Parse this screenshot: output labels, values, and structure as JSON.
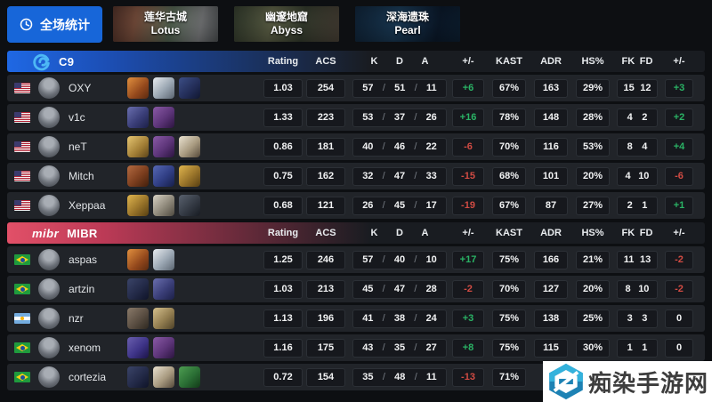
{
  "toolbar": {
    "stats_button_label": "全场统计",
    "maps": [
      {
        "name_cn": "莲华古城",
        "name_en": "Lotus"
      },
      {
        "name_cn": "幽邃地窟",
        "name_en": "Abyss"
      },
      {
        "name_cn": "深海遗珠",
        "name_en": "Pearl"
      }
    ]
  },
  "columns": {
    "rating": "Rating",
    "acs": "ACS",
    "k": "K",
    "d": "D",
    "a": "A",
    "diff": "+/-",
    "kast": "KAST",
    "adr": "ADR",
    "hs": "HS%",
    "fk": "FK",
    "fd": "FD",
    "diff2": "+/-"
  },
  "colors": {
    "accent_blue": "#1766d9",
    "c9_bar": "#1f68e4",
    "mibr_bar": "#e25068",
    "positive": "#2ab365",
    "negative": "#d14b43"
  },
  "icons": {
    "clock-icon": "clock dial",
    "c9-logo-icon": "Cloud9 blue swirl",
    "mibr-logo": "mibr italic wordmark",
    "flag-us-icon": "USA flag",
    "flag-br-icon": "Brazil flag",
    "flag-ar-icon": "Argentina flag",
    "agent-icon": "Valorant agent portrait",
    "site-logo-icon": "blue hexagon knot"
  },
  "teams": [
    {
      "name": "C9",
      "header_bg": "linear-gradient(90deg,#1f68e4 0%,#1c4fb6 14%,rgba(24,28,34,0) 52%),#191c21",
      "players": [
        {
          "name": "OXY",
          "flag": "us",
          "agents": [
            "linear-gradient(135deg,#e2903e,#93481c 60%,#5a2a10)",
            "linear-gradient(135deg,#e8ecf0,#9aa6b2 55%,#5a6570)",
            "linear-gradient(135deg,#3c4e86,#222c56 60%,#101730)"
          ],
          "rating": "1.03",
          "acs": "254",
          "k": "57",
          "d": "51",
          "a": "11",
          "diff": "+6",
          "kast": "67%",
          "adr": "163",
          "hs": "29%",
          "fk": "15",
          "fd": "12",
          "diff2": "+3"
        },
        {
          "name": "v1c",
          "flag": "us",
          "agents": [
            "linear-gradient(135deg,#6a6fae,#3a3e78 55%,#1c2048)",
            "linear-gradient(135deg,#8a5aa6,#5c3478 55%,#2c1440)"
          ],
          "rating": "1.33",
          "acs": "223",
          "k": "53",
          "d": "37",
          "a": "26",
          "diff": "+16",
          "kast": "78%",
          "adr": "148",
          "hs": "28%",
          "fk": "4",
          "fd": "2",
          "diff2": "+2"
        },
        {
          "name": "neT",
          "flag": "us",
          "agents": [
            "linear-gradient(135deg,#e6c672,#a07c34 60%,#5c441a)",
            "linear-gradient(135deg,#8a5aa6,#5c3478 55%,#2c1440)",
            "linear-gradient(135deg,#eae2d0,#a89a80 55%,#55493a)"
          ],
          "rating": "0.86",
          "acs": "181",
          "k": "40",
          "d": "46",
          "a": "22",
          "diff": "-6",
          "kast": "70%",
          "adr": "116",
          "hs": "53%",
          "fk": "8",
          "fd": "4",
          "diff2": "+4"
        },
        {
          "name": "Mitch",
          "flag": "us",
          "agents": [
            "linear-gradient(135deg,#b46a40,#7c3e1e 55%,#421f0c)",
            "linear-gradient(135deg,#5668b4,#303e84 55%,#161f4a)",
            "linear-gradient(135deg,#e0b54e,#99742a 55%,#573f12)"
          ],
          "rating": "0.75",
          "acs": "162",
          "k": "32",
          "d": "47",
          "a": "33",
          "diff": "-15",
          "kast": "68%",
          "adr": "101",
          "hs": "20%",
          "fk": "4",
          "fd": "10",
          "diff2": "-6"
        },
        {
          "name": "Xeppaa",
          "flag": "us",
          "agents": [
            "linear-gradient(135deg,#e0b54e,#99742a 55%,#573f12)",
            "linear-gradient(135deg,#d8d2c4,#8e887a 55%,#4e4a40)",
            "linear-gradient(135deg,#59616e,#343a44 55%,#171b22)"
          ],
          "rating": "0.68",
          "acs": "121",
          "k": "26",
          "d": "45",
          "a": "17",
          "diff": "-19",
          "kast": "67%",
          "adr": "87",
          "hs": "27%",
          "fk": "2",
          "fd": "1",
          "diff2": "+1"
        }
      ]
    },
    {
      "name": "MIBR",
      "logo_text": "mibr",
      "header_bg": "linear-gradient(90deg,#e25068 0%,#bb3a56 14%,rgba(26,23,26,0) 52%),#191c21",
      "players": [
        {
          "name": "aspas",
          "flag": "br",
          "agents": [
            "linear-gradient(135deg,#e2903e,#93481c 60%,#5a2a10)",
            "linear-gradient(135deg,#e8ecf0,#9aa6b2 55%,#5a6570)"
          ],
          "rating": "1.25",
          "acs": "246",
          "k": "57",
          "d": "40",
          "a": "10",
          "diff": "+17",
          "kast": "75%",
          "adr": "166",
          "hs": "21%",
          "fk": "11",
          "fd": "13",
          "diff2": "-2"
        },
        {
          "name": "artzin",
          "flag": "br",
          "agents": [
            "linear-gradient(135deg,#3a4468,#232a48 55%,#0f1428)",
            "linear-gradient(135deg,#6a6fae,#3a3e78 55%,#1c2048)"
          ],
          "rating": "1.03",
          "acs": "213",
          "k": "45",
          "d": "47",
          "a": "28",
          "diff": "-2",
          "kast": "70%",
          "adr": "127",
          "hs": "20%",
          "fk": "8",
          "fd": "10",
          "diff2": "-2"
        },
        {
          "name": "nzr",
          "flag": "ar",
          "agents": [
            "linear-gradient(135deg,#8a7a6a,#5a4e42 55%,#2e2820)",
            "linear-gradient(135deg,#d6c18e,#927d50 55%,#4e4228)"
          ],
          "rating": "1.13",
          "acs": "196",
          "k": "41",
          "d": "38",
          "a": "24",
          "diff": "+3",
          "kast": "75%",
          "adr": "138",
          "hs": "25%",
          "fk": "3",
          "fd": "3",
          "diff2": "0"
        },
        {
          "name": "xenom",
          "flag": "br",
          "agents": [
            "linear-gradient(135deg,#6a5fae,#3e3488 55%,#1c1448)",
            "linear-gradient(135deg,#8a5aa6,#5c3478 55%,#2c1440)"
          ],
          "rating": "1.16",
          "acs": "175",
          "k": "43",
          "d": "35",
          "a": "27",
          "diff": "+8",
          "kast": "75%",
          "adr": "115",
          "hs": "30%",
          "fk": "1",
          "fd": "1",
          "diff2": "0"
        },
        {
          "name": "cortezia",
          "flag": "br",
          "agents": [
            "linear-gradient(135deg,#3a4468,#232a48 55%,#0f1428)",
            "linear-gradient(135deg,#eae2d0,#a89a80 55%,#55493a)",
            "linear-gradient(135deg,#4e9e52,#2a6e34 55%,#123a18)"
          ],
          "rating": "0.72",
          "acs": "154",
          "k": "35",
          "d": "48",
          "a": "11",
          "diff": "-13",
          "kast": "71%",
          "adr": "",
          "hs": "",
          "fk": "",
          "fd": "",
          "diff2": ""
        }
      ]
    }
  ],
  "watermark": {
    "site_name": "痴染手游网"
  }
}
